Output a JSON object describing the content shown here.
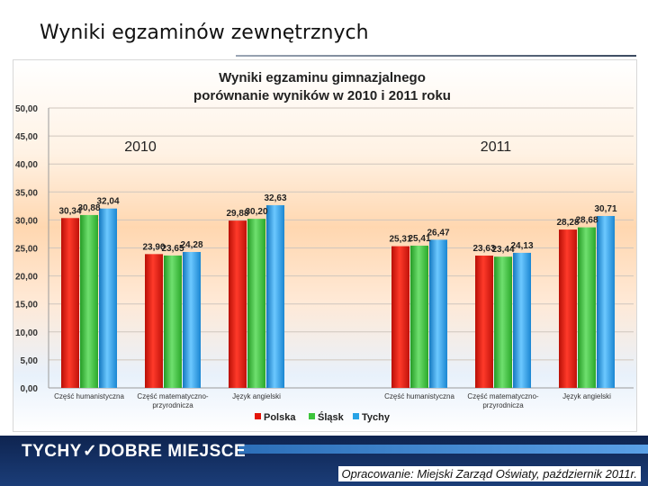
{
  "slide": {
    "title": "Wyniki egzaminów zewnętrznych",
    "logo_part1": "TYCHY",
    "logo_check": "✓",
    "logo_part2": "DOBRE MIEJSCE",
    "credit": "Opracowanie: Miejski Zarząd Oświaty, październik 2011r."
  },
  "chart_data": {
    "type": "bar",
    "title_line1": "Wyniki egzaminu gimnazjalnego",
    "title_line2": "porównanie wyników w 2010 i 2011 roku",
    "ylim": [
      0,
      50
    ],
    "yticks": [
      "0,00",
      "5,00",
      "10,00",
      "15,00",
      "20,00",
      "25,00",
      "30,00",
      "35,00",
      "40,00",
      "45,00",
      "50,00"
    ],
    "groups": [
      {
        "year": "2010",
        "categories": [
          {
            "label_lines": [
              "Część humanistyczna"
            ],
            "values": [
              30.34,
              30.88,
              32.04
            ],
            "labels": [
              "30,34",
              "30,88",
              "32,04"
            ]
          },
          {
            "label_lines": [
              "Część matematyczno-",
              "przyrodnicza"
            ],
            "values": [
              23.9,
              23.65,
              24.28
            ],
            "labels": [
              "23,90",
              "23,65",
              "24,28"
            ]
          },
          {
            "label_lines": [
              "Język angielski"
            ],
            "values": [
              29.88,
              30.2,
              32.63
            ],
            "labels": [
              "29,88",
              "30,20",
              "32,63"
            ]
          }
        ]
      },
      {
        "year": "2011",
        "categories": [
          {
            "label_lines": [
              "Część humanistyczna"
            ],
            "values": [
              25.31,
              25.41,
              26.47
            ],
            "labels": [
              "25,31",
              "25,41",
              "26,47"
            ]
          },
          {
            "label_lines": [
              "Część matematyczno-",
              "przyrodnicza"
            ],
            "values": [
              23.63,
              23.44,
              24.13
            ],
            "labels": [
              "23,63",
              "23,44",
              "24,13"
            ]
          },
          {
            "label_lines": [
              "Język angielski"
            ],
            "values": [
              28.28,
              28.68,
              30.71
            ],
            "labels": [
              "28,28",
              "28,68",
              "30,71"
            ]
          }
        ]
      }
    ],
    "series": [
      {
        "name": "Polska",
        "color": "#e3160b"
      },
      {
        "name": "Śląsk",
        "color": "#3cc43c"
      },
      {
        "name": "Tychy",
        "color": "#28a3e6"
      }
    ],
    "legend_position": "bottom"
  }
}
